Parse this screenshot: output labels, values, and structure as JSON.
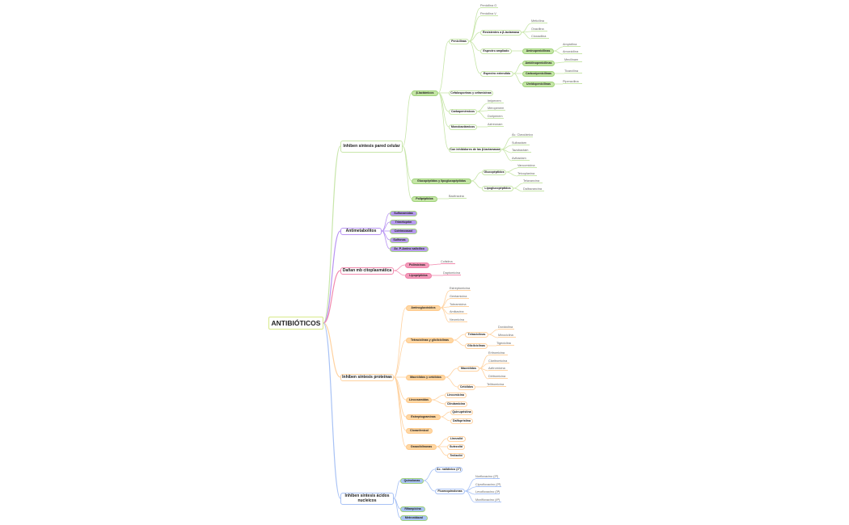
{
  "branch_colors": [
    {
      "line": "#c8e6aa",
      "fill": "#c5e6a6",
      "border": "#9fd27a"
    },
    {
      "line": "#b894f2",
      "fill": "#b79af0",
      "border": "#a5d47e"
    },
    {
      "line": "#f28aae",
      "fill": "#f49bbb",
      "border": "#ee7fa6"
    },
    {
      "line": "#ffd2a0",
      "fill": "#ffd7a3",
      "border": "#ffc98a"
    },
    {
      "line": "#a8c2f5",
      "fill": "#a9c3f5",
      "border": "#9fd27a"
    }
  ],
  "map": {
    "label": "ANTIBIÓTICOS",
    "children": [
      {
        "label": "Inhiben síntesis pared celular",
        "children": [
          {
            "label": "β-lactámicos",
            "children": [
              {
                "label": "Penicilinas",
                "children": [
                  {
                    "label": "Penicilina G"
                  },
                  {
                    "label": "Penicilina V"
                  },
                  {
                    "label": "Resistentes a β-lactamasa",
                    "children": [
                      {
                        "label": "Meticilina"
                      },
                      {
                        "label": "Oxacilina"
                      },
                      {
                        "label": "Cloxacilina"
                      }
                    ]
                  },
                  {
                    "label": "Espectro ampliado",
                    "children": [
                      {
                        "label": "Aminopenicilinas",
                        "children": [
                          {
                            "label": "Ampicilina"
                          },
                          {
                            "label": "Amoxicilina"
                          }
                        ]
                      }
                    ]
                  },
                  {
                    "label": "Espectro extendido",
                    "children": [
                      {
                        "label": "Amidinopenicilinas",
                        "children": [
                          {
                            "label": "Mecilinam"
                          }
                        ]
                      },
                      {
                        "label": "Carboxipenicilinas",
                        "children": [
                          {
                            "label": "Ticarcilina"
                          }
                        ]
                      },
                      {
                        "label": "Ureidopenicilinas",
                        "children": [
                          {
                            "label": "Piperacilina"
                          }
                        ]
                      }
                    ]
                  }
                ]
              },
              {
                "label": "Cefalosporinas y cefamicinas"
              },
              {
                "label": "Carbapenémicos",
                "children": [
                  {
                    "label": "Imipenem"
                  },
                  {
                    "label": "Meropenem"
                  },
                  {
                    "label": "Doripenem"
                  }
                ]
              },
              {
                "label": "Monobactámicos",
                "children": [
                  {
                    "label": "Aztreonam"
                  }
                ]
              },
              {
                "label": "Con inhibidores de las β-lactamasas",
                "children": [
                  {
                    "label": "Ác. Clavulánico"
                  },
                  {
                    "label": "Sulbactam"
                  },
                  {
                    "label": "Tazobactam"
                  },
                  {
                    "label": "Avibactam"
                  }
                ]
              }
            ]
          },
          {
            "label": "Glucopéptidos y lipoglucopéptidos",
            "children": [
              {
                "label": "Glucopéptidos",
                "children": [
                  {
                    "label": "Vancomicina"
                  },
                  {
                    "label": "Teicoplanina"
                  }
                ]
              },
              {
                "label": "Lipoglucopéptidos",
                "children": [
                  {
                    "label": "Telavancina"
                  },
                  {
                    "label": "Dalbavancina"
                  }
                ]
              }
            ]
          },
          {
            "label": "Polipéptidos",
            "children": [
              {
                "label": "Bacitracina"
              }
            ]
          }
        ]
      },
      {
        "label": "Antimetabolitos",
        "children": [
          {
            "label": "Sulfonamidas"
          },
          {
            "label": "Trimetoprim"
          },
          {
            "label": "Cotrimoxazol"
          },
          {
            "label": "Sulfonas"
          },
          {
            "label": "Ác. P-Amino salicílico"
          }
        ]
      },
      {
        "label": "Dañan mb citoplasmática",
        "children": [
          {
            "label": "Polimixinas",
            "children": [
              {
                "label": "Colistina"
              }
            ]
          },
          {
            "label": "Lipopéptidos",
            "children": [
              {
                "label": "Daptomicina"
              }
            ]
          }
        ]
      },
      {
        "label": "Inhiben síntesis proteínas",
        "children": [
          {
            "label": "Aminoglucósidos",
            "children": [
              {
                "label": "Estreptomicina"
              },
              {
                "label": "Gentamicina"
              },
              {
                "label": "Tobramicina"
              },
              {
                "label": "Amikacina"
              },
              {
                "label": "Neomicina"
              }
            ]
          },
          {
            "label": "Tetraciclinas y glicilciclinas",
            "children": [
              {
                "label": "Tetraciclinas",
                "children": [
                  {
                    "label": "Doxiciclina"
                  },
                  {
                    "label": "Minociclina"
                  }
                ]
              },
              {
                "label": "Glicilciclinas",
                "children": [
                  {
                    "label": "Tigeciclina"
                  }
                ]
              }
            ]
          },
          {
            "label": "Macrólidos y cetólidos",
            "children": [
              {
                "label": "Macrólidos",
                "children": [
                  {
                    "label": "Eritromicina"
                  },
                  {
                    "label": "Claritromicina"
                  },
                  {
                    "label": "Azitromicina"
                  },
                  {
                    "label": "Diritromicina"
                  }
                ]
              },
              {
                "label": "Cetólidos",
                "children": [
                  {
                    "label": "Telitromicina"
                  }
                ]
              }
            ]
          },
          {
            "label": "Lincosamidas",
            "children": [
              {
                "label": "Lincomicina"
              },
              {
                "label": "Clindamicina"
              }
            ]
          },
          {
            "label": "Estreptograminas",
            "children": [
              {
                "label": "Quinupristina"
              },
              {
                "label": "Dalfopristina"
              }
            ]
          },
          {
            "label": "Cloranfenicol"
          },
          {
            "label": "Oxazolidinonas",
            "children": [
              {
                "label": "Linezolid"
              },
              {
                "label": "Sutezolid"
              },
              {
                "label": "Tedizolid"
              }
            ]
          }
        ]
      },
      {
        "label": "Inhiben síntesis ácidos nucleicos",
        "children": [
          {
            "label": "Quinolonas",
            "children": [
              {
                "label": "Ác. nalidíxico (1ª)"
              },
              {
                "label": "Fluoroquinolonas",
                "children": [
                  {
                    "label": "Norfloxacino (2ª)"
                  },
                  {
                    "label": "Ciprofloxacino (2ª)"
                  },
                  {
                    "label": "Levofloxacino (3ª)"
                  },
                  {
                    "label": "Moxifloxacino (4ª)"
                  }
                ]
              }
            ]
          },
          {
            "label": "Rifampicina"
          },
          {
            "label": "Metronidazol"
          }
        ]
      }
    ]
  }
}
